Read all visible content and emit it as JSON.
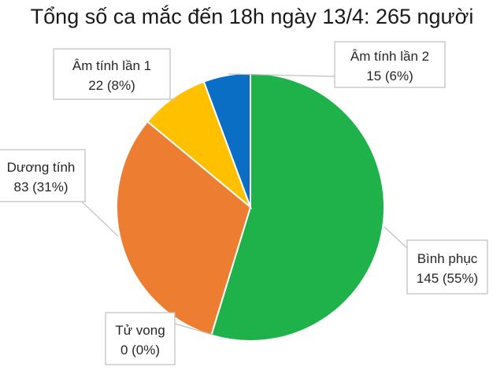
{
  "chart_data": {
    "type": "pie",
    "title": "Tổng số ca mắc đến 18h ngày 13/4: 265 người",
    "total": 265,
    "slices": [
      {
        "name": "Bình phục",
        "value": 145,
        "percent_label": "145 (55%)",
        "color": "#1fb24a"
      },
      {
        "name": "Tử vong",
        "value": 0,
        "percent_label": "0 (0%)",
        "color": "#a5a5a5"
      },
      {
        "name": "Dương tính",
        "value": 83,
        "percent_label": "83 (31%)",
        "color": "#ed7d31"
      },
      {
        "name": "Âm tính lần 1",
        "value": 22,
        "percent_label": "22 (8%)",
        "color": "#ffc000"
      },
      {
        "name": "Âm tính lần 2",
        "value": 15,
        "percent_label": "15 (6%)",
        "color": "#0a6fc4"
      }
    ]
  }
}
